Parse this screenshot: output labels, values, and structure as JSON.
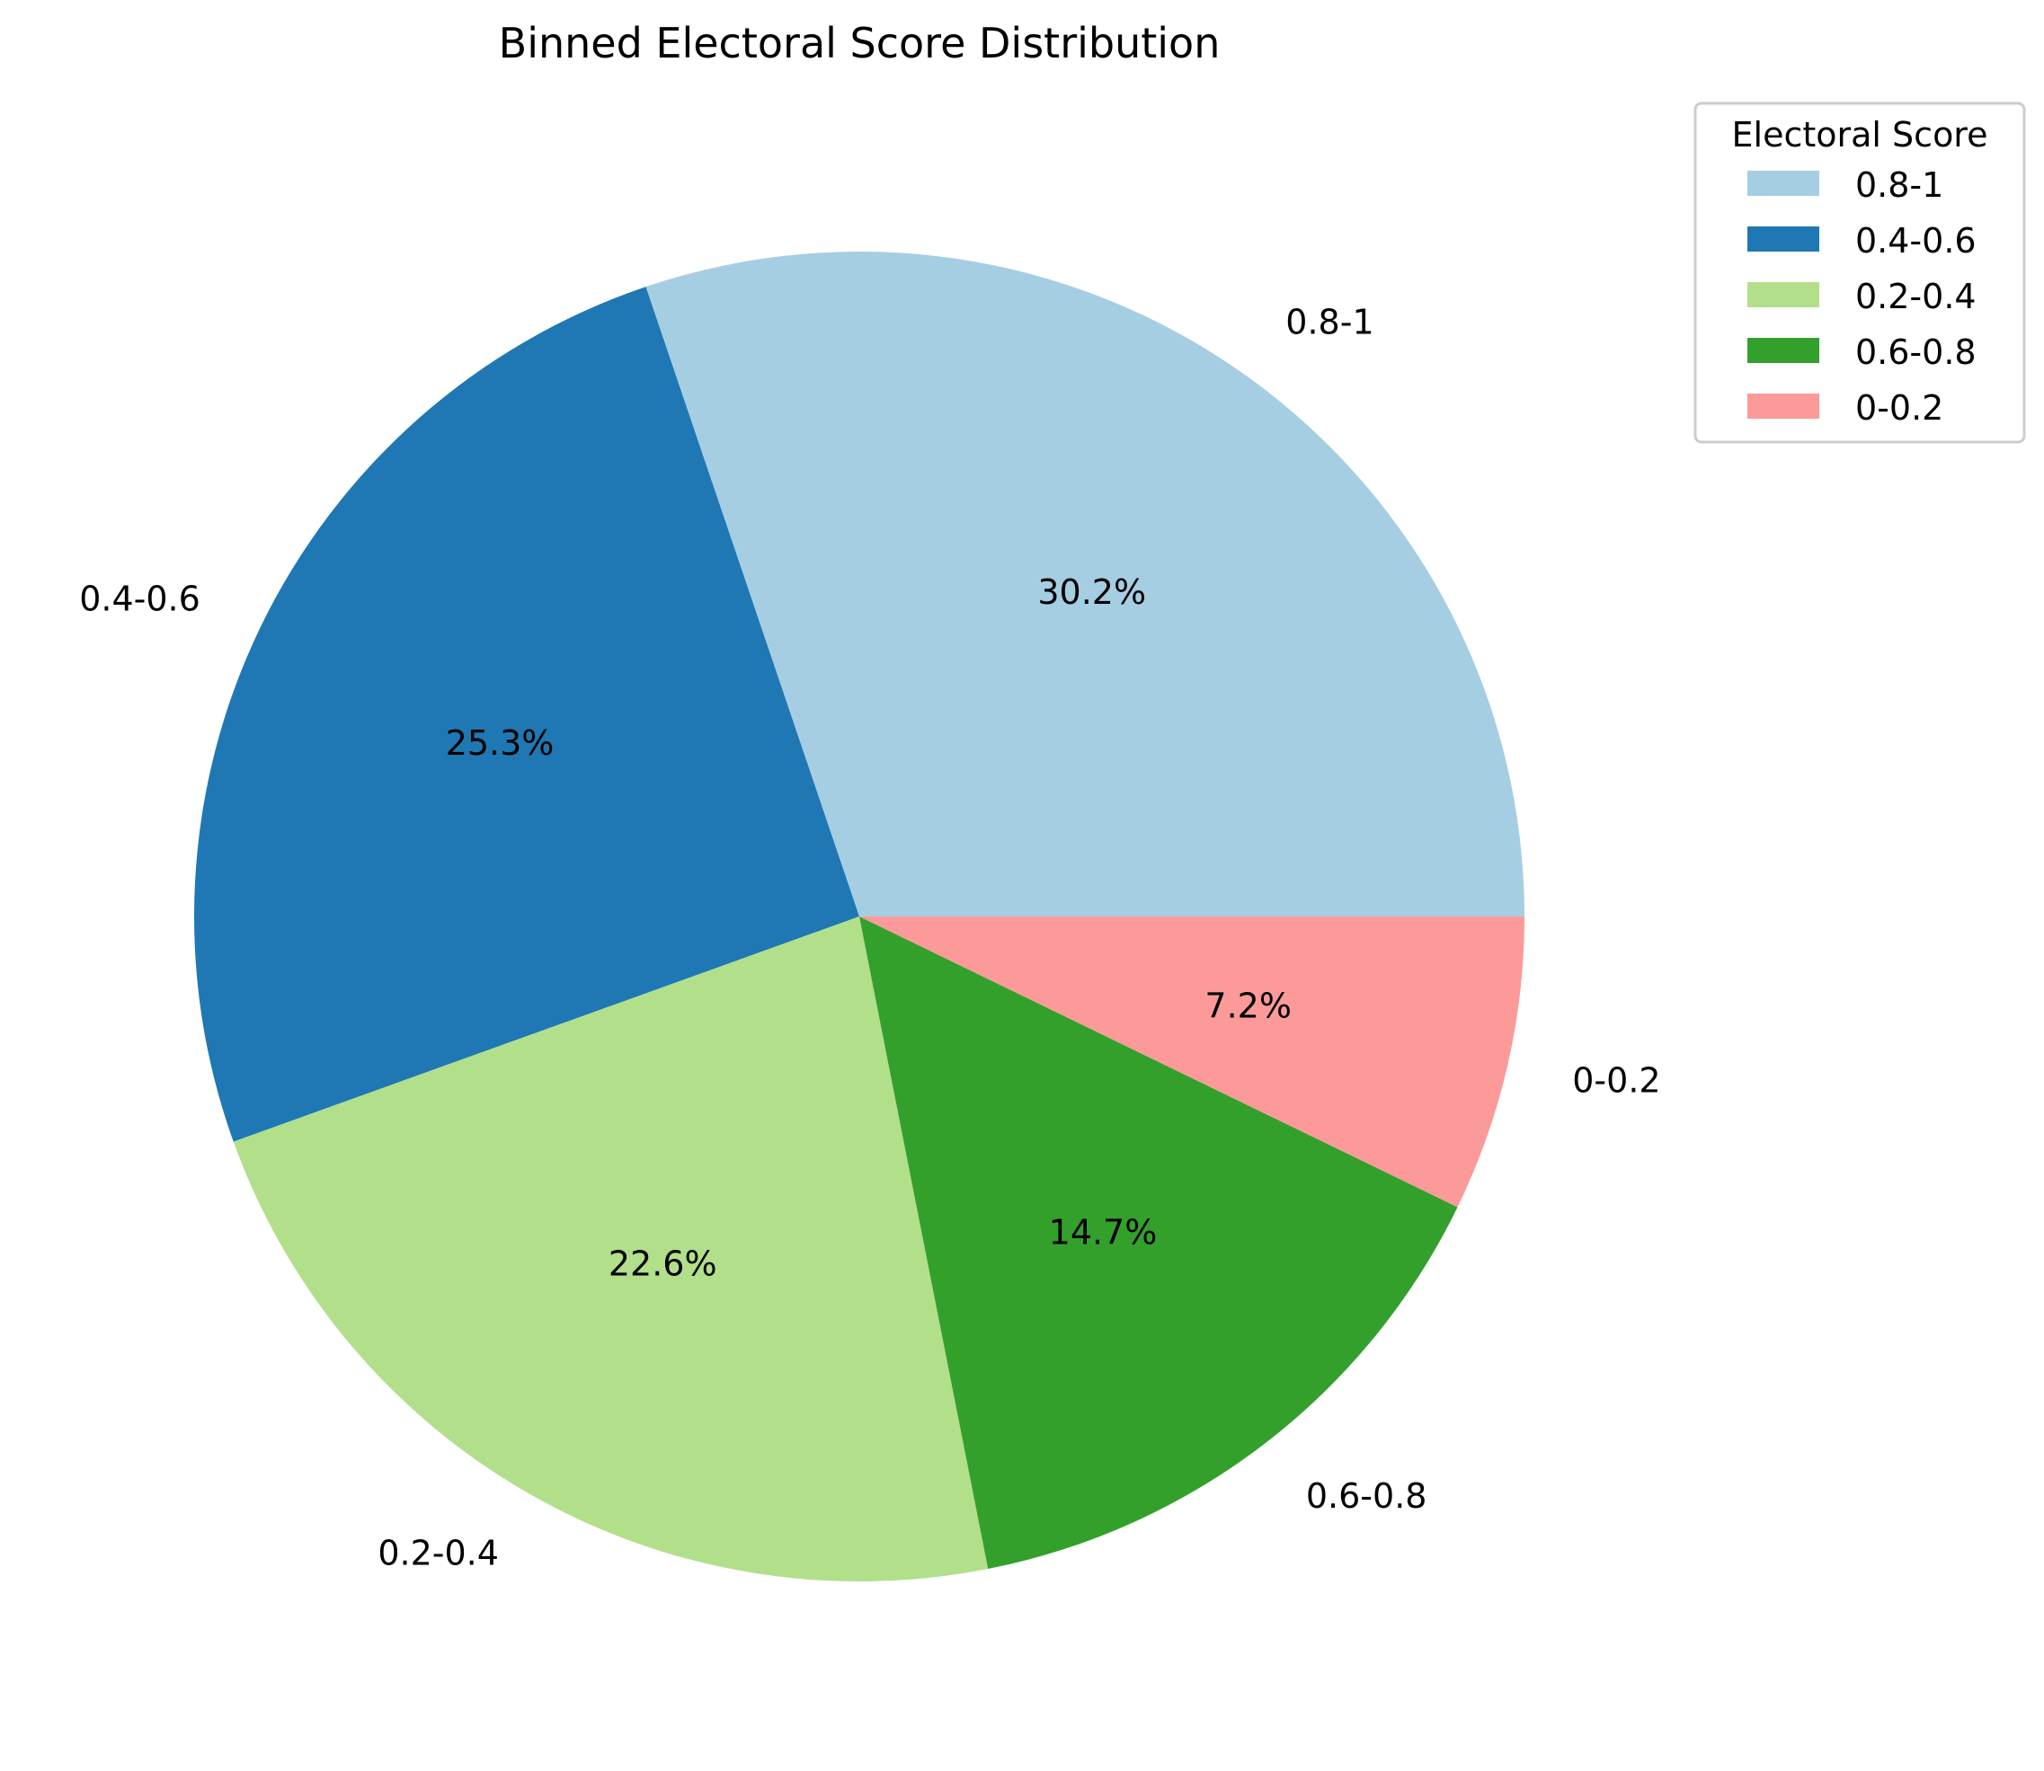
{
  "chart_data": {
    "type": "pie",
    "title": "Binned Electoral Score Distribution",
    "categories": [
      "0.8-1",
      "0.4-0.6",
      "0.2-0.4",
      "0.6-0.8",
      "0-0.2"
    ],
    "values": [
      30.2,
      25.3,
      22.6,
      14.7,
      7.2
    ],
    "value_labels": [
      "30.2%",
      "25.3%",
      "22.6%",
      "14.7%",
      "7.2%"
    ],
    "colors": [
      "#a6cee3",
      "#1f78b4",
      "#b2df8a",
      "#33a02c",
      "#fb9a99"
    ],
    "start_angle_deg": 0,
    "direction": "counterclockwise",
    "legend": {
      "title": "Electoral Score",
      "entries": [
        "0.8-1",
        "0.4-0.6",
        "0.2-0.4",
        "0.6-0.8",
        "0-0.2"
      ],
      "position": "top-right"
    }
  }
}
